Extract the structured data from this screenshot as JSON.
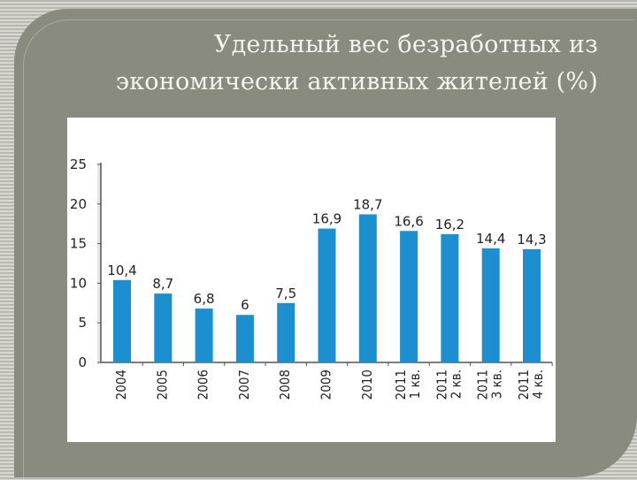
{
  "title": {
    "line1": "Удельный вес безработных из",
    "line2": "экономически активных жителей (%)"
  },
  "chart_data": {
    "type": "bar",
    "categories": [
      [
        "2004"
      ],
      [
        "2005"
      ],
      [
        "2006"
      ],
      [
        "2007"
      ],
      [
        "2008"
      ],
      [
        "2009"
      ],
      [
        "2010"
      ],
      [
        "2011",
        "1 кв."
      ],
      [
        "2011",
        "2 кв."
      ],
      [
        "2011",
        "3 кв."
      ],
      [
        "2011",
        "4 кв."
      ]
    ],
    "values": [
      10.4,
      8.7,
      6.8,
      6,
      7.5,
      16.9,
      18.7,
      16.6,
      16.2,
      14.4,
      14.3
    ],
    "value_labels": [
      "10,4",
      "8,7",
      "6,8",
      "6",
      "7,5",
      "16,9",
      "18,7",
      "16,6",
      "16,2",
      "14,4",
      "14,3"
    ],
    "y_ticks": [
      "0",
      "5",
      "10",
      "15",
      "20",
      "25"
    ],
    "ylim": [
      0,
      25
    ],
    "grid": false,
    "colors": {
      "bar": "#1b8fd0",
      "axis": "#555555",
      "background": "#ffffff"
    }
  }
}
